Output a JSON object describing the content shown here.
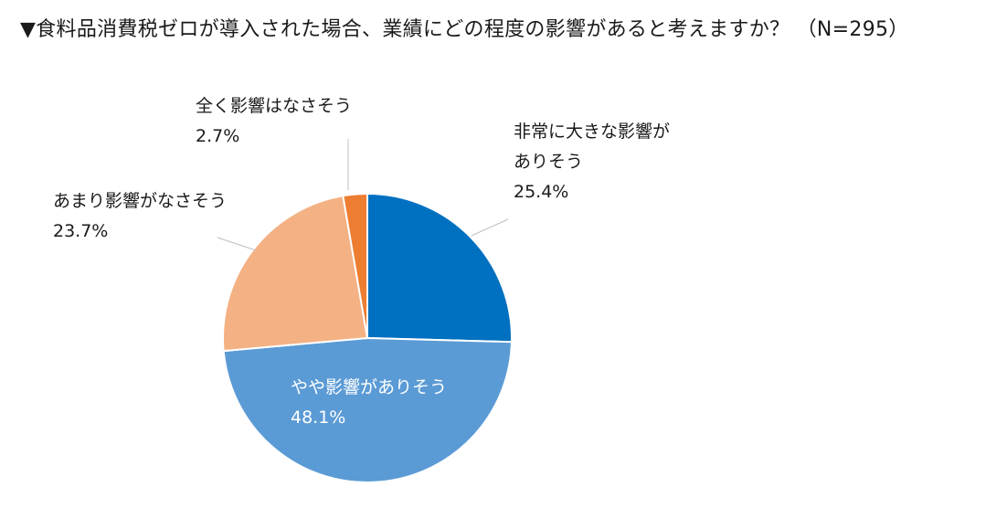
{
  "title": "▼食料品消費税ゼロが導入された場合、業績にどの程度の影響があると考えますか？ （N=295）",
  "chart_data": {
    "type": "pie",
    "title": "▼食料品消費税ゼロが導入された場合、業績にどの程度の影響があると考えますか？ （N=295）",
    "n": 295,
    "start_angle_deg": 0,
    "direction": "clockwise",
    "slices": [
      {
        "label": "非常に大きな影響がありそう",
        "label_lines": [
          "非常に大きな影響が",
          "ありそう"
        ],
        "value": 25.4,
        "display": "25.4%",
        "color": "#0070C0"
      },
      {
        "label": "やや影響がありそう",
        "label_lines": [
          "やや影響がありそう"
        ],
        "value": 48.1,
        "display": "48.1%",
        "color": "#5B9BD5"
      },
      {
        "label": "あまり影響がなさそう",
        "label_lines": [
          "あまり影響がなさそう"
        ],
        "value": 23.7,
        "display": "23.7%",
        "color": "#F4B183"
      },
      {
        "label": "全く影響はなさそう",
        "label_lines": [
          "全く影響はなさそう"
        ],
        "value": 2.7,
        "display": "2.7%",
        "color": "#ED7D31"
      }
    ]
  }
}
